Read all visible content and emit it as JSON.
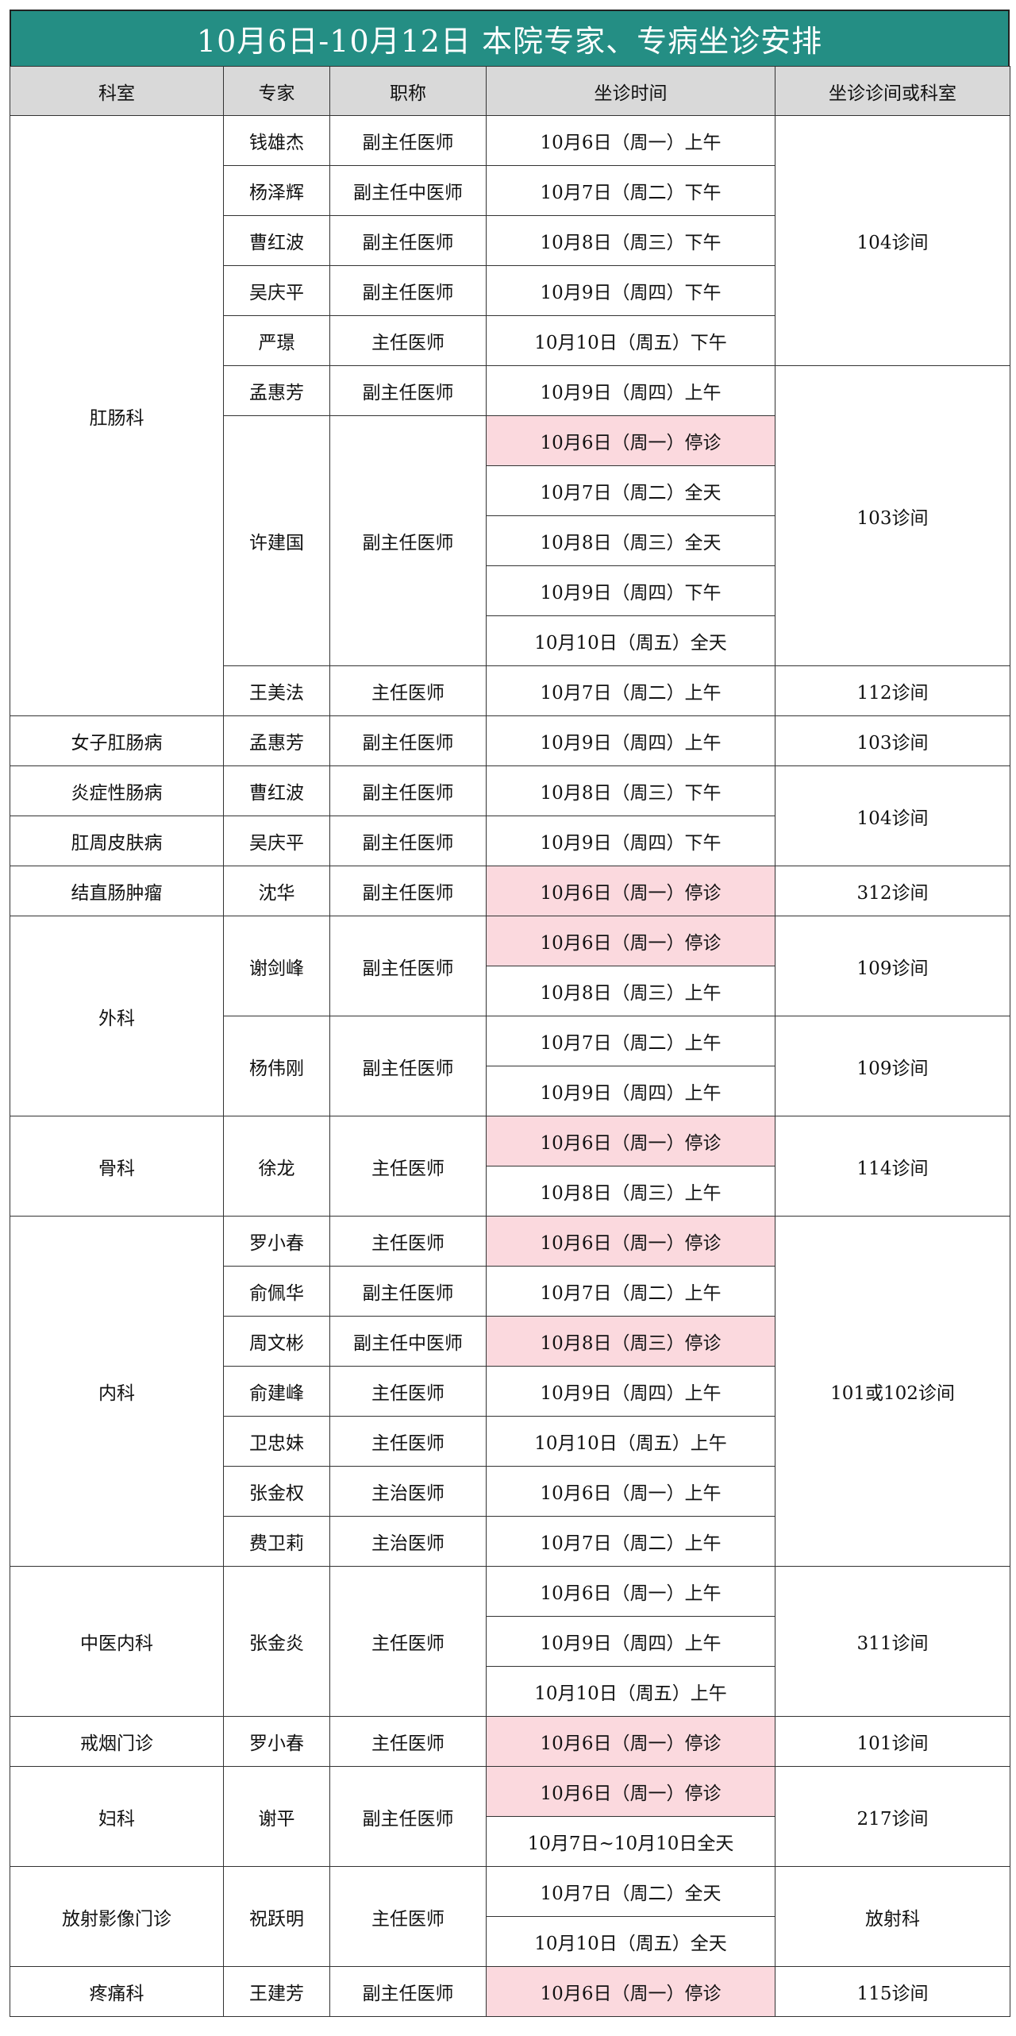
{
  "title": "10月6日-10月12日 本院专家、专病坐诊安排",
  "headers": [
    "科室",
    "专家",
    "职称",
    "坐诊时间",
    "坐诊诊间或科室"
  ],
  "colors": {
    "title_bg": "#248e84",
    "header_bg": "#d9d9d9",
    "stopped_bg": "#fbd9de"
  },
  "rows": [
    {
      "dept": "肛肠科",
      "dept_span": 12,
      "doctor": "钱雄杰",
      "title": "副主任医师",
      "time": "10月6日（周一）上午",
      "room": "104诊间",
      "room_span": 5
    },
    {
      "doctor": "杨泽辉",
      "title": "副主任中医师",
      "time": "10月7日（周二）下午"
    },
    {
      "doctor": "曹红波",
      "title": "副主任医师",
      "time": "10月8日（周三）下午"
    },
    {
      "doctor": "吴庆平",
      "title": "副主任医师",
      "time": "10月9日（周四）下午"
    },
    {
      "doctor": "严璟",
      "title": "主任医师",
      "time": "10月10日（周五）下午"
    },
    {
      "doctor": "孟惠芳",
      "title": "副主任医师",
      "time": "10月9日（周四）上午",
      "room": "103诊间",
      "room_span": 6
    },
    {
      "doctor": "许建国",
      "title": "副主任医师",
      "doc_span": 5,
      "time": "10月6日（周一）停诊",
      "stopped": true
    },
    {
      "time": "10月7日（周二）全天"
    },
    {
      "time": "10月8日（周三）全天"
    },
    {
      "time": "10月9日（周四）下午"
    },
    {
      "time": "10月10日（周五）全天"
    },
    {
      "doctor": "王美法",
      "title": "主任医师",
      "time": "10月7日（周二）上午",
      "room": "112诊间",
      "room_span": 1
    },
    {
      "dept": "女子肛肠病",
      "dept_span": 1,
      "doctor": "孟惠芳",
      "title": "副主任医师",
      "time": "10月9日（周四）上午",
      "room": "103诊间",
      "room_span": 1
    },
    {
      "dept": "炎症性肠病",
      "dept_span": 1,
      "doctor": "曹红波",
      "title": "副主任医师",
      "time": "10月8日（周三）下午",
      "room": "104诊间",
      "room_span": 2
    },
    {
      "dept": "肛周皮肤病",
      "dept_span": 1,
      "doctor": "吴庆平",
      "title": "副主任医师",
      "time": "10月9日（周四）下午"
    },
    {
      "dept": "结直肠肿瘤",
      "dept_span": 1,
      "doctor": "沈华",
      "title": "副主任医师",
      "time": "10月6日（周一）停诊",
      "stopped": true,
      "room": "312诊间",
      "room_span": 1
    },
    {
      "dept": "外科",
      "dept_span": 4,
      "doctor": "谢剑峰",
      "title": "副主任医师",
      "doc_span": 2,
      "time": "10月6日（周一）停诊",
      "stopped": true,
      "room": "109诊间",
      "room_span": 2
    },
    {
      "time": "10月8日（周三）上午"
    },
    {
      "doctor": "杨伟刚",
      "title": "副主任医师",
      "doc_span": 2,
      "time": "10月7日（周二）上午",
      "room": "109诊间",
      "room_span": 2
    },
    {
      "time": "10月9日（周四）上午"
    },
    {
      "dept": "骨科",
      "dept_span": 2,
      "doctor": "徐龙",
      "title": "主任医师",
      "doc_span": 2,
      "time": "10月6日（周一）停诊",
      "stopped": true,
      "room": "114诊间",
      "room_span": 2
    },
    {
      "time": "10月8日（周三）上午"
    },
    {
      "dept": "内科",
      "dept_span": 7,
      "doctor": "罗小春",
      "title": "主任医师",
      "time": "10月6日（周一）停诊",
      "stopped": true,
      "room": "101或102诊间",
      "room_span": 7
    },
    {
      "doctor": "俞佩华",
      "title": "副主任医师",
      "time": "10月7日（周二）上午"
    },
    {
      "doctor": "周文彬",
      "title": "副主任中医师",
      "time": "10月8日（周三）停诊",
      "stopped": true
    },
    {
      "doctor": "俞建峰",
      "title": "主任医师",
      "time": "10月9日（周四）上午"
    },
    {
      "doctor": "卫忠妹",
      "title": "主任医师",
      "time": "10月10日（周五）上午"
    },
    {
      "doctor": "张金权",
      "title": "主治医师",
      "time": "10月6日（周一）上午"
    },
    {
      "doctor": "费卫莉",
      "title": "主治医师",
      "time": "10月7日（周二）上午"
    },
    {
      "dept": "中医内科",
      "dept_span": 3,
      "doctor": "张金炎",
      "title": "主任医师",
      "doc_span": 3,
      "time": "10月6日（周一）上午",
      "room": "311诊间",
      "room_span": 3
    },
    {
      "time": "10月9日（周四）上午"
    },
    {
      "time": "10月10日（周五）上午"
    },
    {
      "dept": "戒烟门诊",
      "dept_span": 1,
      "doctor": "罗小春",
      "title": "主任医师",
      "time": "10月6日（周一）停诊",
      "stopped": true,
      "room": "101诊间",
      "room_span": 1
    },
    {
      "dept": "妇科",
      "dept_span": 2,
      "doctor": "谢平",
      "title": "副主任医师",
      "doc_span": 2,
      "time": "10月6日（周一）停诊",
      "stopped": true,
      "room": "217诊间",
      "room_span": 2
    },
    {
      "time": "10月7日~10月10日全天"
    },
    {
      "dept": "放射影像门诊",
      "dept_span": 2,
      "doctor": "祝跃明",
      "title": "主任医师",
      "doc_span": 2,
      "time": "10月7日（周二）全天",
      "room": "放射科",
      "room_span": 2
    },
    {
      "time": "10月10日（周五）全天"
    },
    {
      "dept": "疼痛科",
      "dept_span": 1,
      "doctor": "王建芳",
      "title": "副主任医师",
      "time": "10月6日（周一）停诊",
      "stopped": true,
      "room": "115诊间",
      "room_span": 1
    }
  ]
}
